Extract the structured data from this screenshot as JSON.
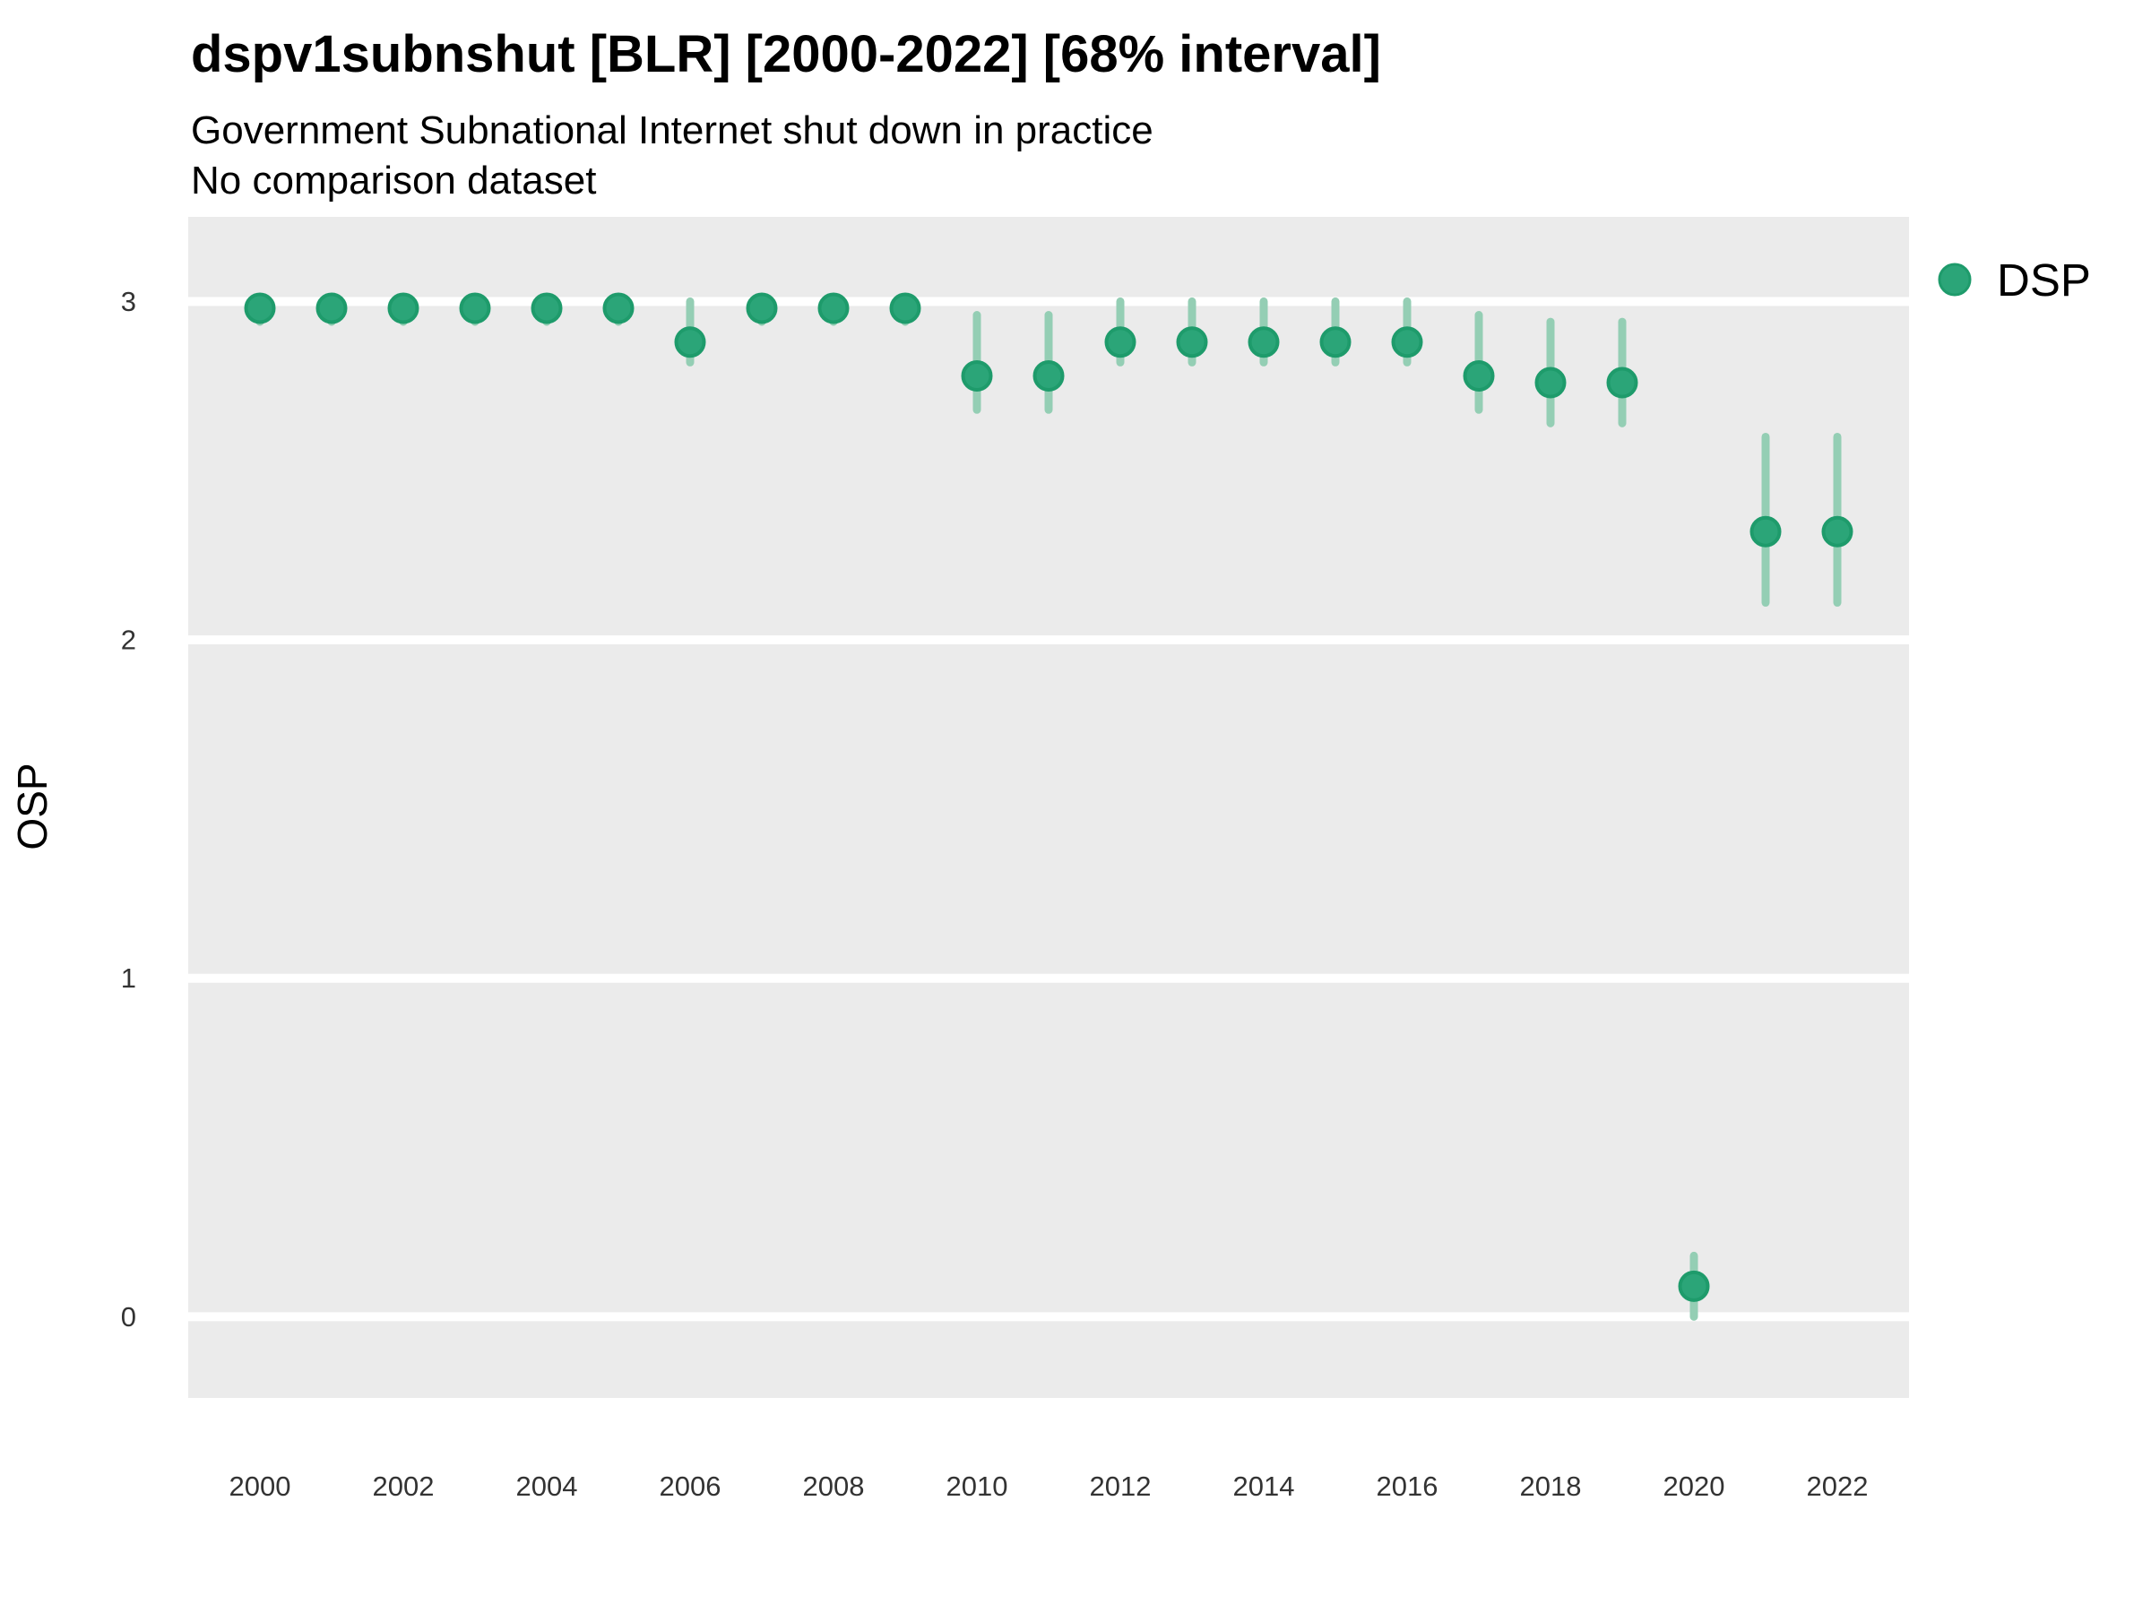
{
  "title": "dspv1subnshut [BLR] [2000-2022] [68% interval]",
  "subtitle": "Government Subnational Internet shut down in practice",
  "subtitle2": "No comparison dataset",
  "ylabel": "OSP",
  "legend": {
    "label": "DSP"
  },
  "colors": {
    "figure_bg": "#ffffff",
    "panel_bg": "#ebebeb",
    "gridline": "#ffffff",
    "point_fill": "#2ba578",
    "point_stroke": "#1e9b6b",
    "interval": "#94ceb4",
    "title_text": "#000000",
    "tick_text": "#333333"
  },
  "chart_data": {
    "type": "pointrange",
    "title": "dspv1subnshut [BLR] [2000-2022] [68% interval]",
    "subtitle": "Government Subnational Internet shut down in practice",
    "comparison_note": "No comparison dataset",
    "xlabel": "",
    "ylabel": "OSP",
    "interval_level": "68%",
    "country": "BLR",
    "xlim": [
      1999,
      2023
    ],
    "ylim": [
      -0.24,
      3.25
    ],
    "x_ticks": [
      2000,
      2002,
      2004,
      2006,
      2008,
      2010,
      2012,
      2014,
      2016,
      2018,
      2020,
      2022
    ],
    "y_ticks": [
      0,
      1,
      2,
      3
    ],
    "grid": "horizontal-major-only",
    "legend_position": "right-top",
    "series": [
      {
        "name": "DSP",
        "points": [
          {
            "year": 2000,
            "est": 2.98,
            "lo": 2.94,
            "hi": 3.0
          },
          {
            "year": 2001,
            "est": 2.98,
            "lo": 2.94,
            "hi": 3.0
          },
          {
            "year": 2002,
            "est": 2.98,
            "lo": 2.94,
            "hi": 3.0
          },
          {
            "year": 2003,
            "est": 2.98,
            "lo": 2.94,
            "hi": 3.0
          },
          {
            "year": 2004,
            "est": 2.98,
            "lo": 2.94,
            "hi": 3.0
          },
          {
            "year": 2005,
            "est": 2.98,
            "lo": 2.94,
            "hi": 3.0
          },
          {
            "year": 2006,
            "est": 2.88,
            "lo": 2.82,
            "hi": 3.0
          },
          {
            "year": 2007,
            "est": 2.98,
            "lo": 2.94,
            "hi": 3.0
          },
          {
            "year": 2008,
            "est": 2.98,
            "lo": 2.94,
            "hi": 3.0
          },
          {
            "year": 2009,
            "est": 2.98,
            "lo": 2.94,
            "hi": 3.0
          },
          {
            "year": 2010,
            "est": 2.78,
            "lo": 2.68,
            "hi": 2.96
          },
          {
            "year": 2011,
            "est": 2.78,
            "lo": 2.68,
            "hi": 2.96
          },
          {
            "year": 2012,
            "est": 2.88,
            "lo": 2.82,
            "hi": 3.0
          },
          {
            "year": 2013,
            "est": 2.88,
            "lo": 2.82,
            "hi": 3.0
          },
          {
            "year": 2014,
            "est": 2.88,
            "lo": 2.82,
            "hi": 3.0
          },
          {
            "year": 2015,
            "est": 2.88,
            "lo": 2.82,
            "hi": 3.0
          },
          {
            "year": 2016,
            "est": 2.88,
            "lo": 2.82,
            "hi": 3.0
          },
          {
            "year": 2017,
            "est": 2.78,
            "lo": 2.68,
            "hi": 2.96
          },
          {
            "year": 2018,
            "est": 2.76,
            "lo": 2.64,
            "hi": 2.94
          },
          {
            "year": 2019,
            "est": 2.76,
            "lo": 2.64,
            "hi": 2.94
          },
          {
            "year": 2020,
            "est": 0.09,
            "lo": 0.0,
            "hi": 0.18
          },
          {
            "year": 2021,
            "est": 2.32,
            "lo": 2.11,
            "hi": 2.6
          },
          {
            "year": 2022,
            "est": 2.32,
            "lo": 2.11,
            "hi": 2.6
          }
        ]
      }
    ]
  }
}
